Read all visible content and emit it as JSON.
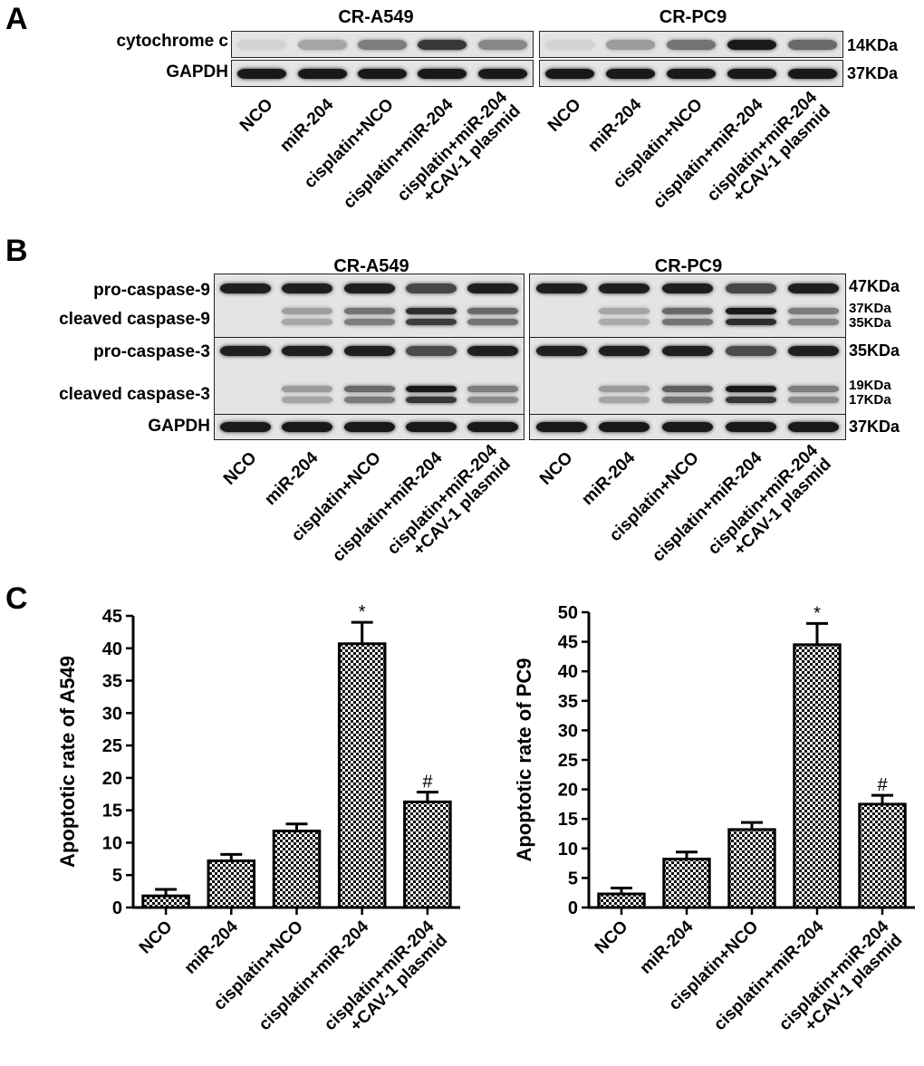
{
  "panels": {
    "A": {
      "letter": "A",
      "cell_lines": [
        "CR-A549",
        "CR-PC9"
      ],
      "rows": [
        {
          "label": "cytochrome c",
          "kda": "14KDa",
          "intensity_a549": [
            0.02,
            0.25,
            0.45,
            0.8,
            0.4
          ],
          "intensity_pc9": [
            0.02,
            0.3,
            0.5,
            0.95,
            0.55
          ]
        },
        {
          "label": "GAPDH",
          "kda": "37KDa",
          "intensity_a549": [
            0.95,
            0.95,
            0.95,
            0.95,
            0.95
          ],
          "intensity_pc9": [
            0.95,
            0.95,
            0.95,
            0.95,
            0.95
          ]
        }
      ],
      "lanes": [
        [
          "NCO"
        ],
        [
          "miR-204"
        ],
        [
          "cisplatin+NCO"
        ],
        [
          "cisplatin+miR-204"
        ],
        [
          "cisplatin+miR-204",
          "+CAV-1 plasmid"
        ]
      ]
    },
    "B": {
      "letter": "B",
      "cell_lines": [
        "CR-A549",
        "CR-PC9"
      ],
      "rows": [
        {
          "label": "pro-caspase-9",
          "kda": [
            "47KDa"
          ]
        },
        {
          "label": "cleaved caspase-9",
          "kda": [
            "37KDa",
            "35KDa"
          ]
        },
        {
          "label": "pro-caspase-3",
          "kda": [
            "35KDa"
          ]
        },
        {
          "label": "cleaved caspase-3",
          "kda": [
            "19KDa",
            "17KDa"
          ]
        },
        {
          "label": "GAPDH",
          "kda": [
            "37KDa"
          ]
        }
      ],
      "lanes": [
        [
          "NCO"
        ],
        [
          "miR-204"
        ],
        [
          "cisplatin+NCO"
        ],
        [
          "cisplatin+miR-204"
        ],
        [
          "cisplatin+miR-204",
          "+CAV-1 plasmid"
        ]
      ]
    },
    "C": {
      "letter": "C"
    }
  },
  "chart_data": [
    {
      "type": "bar",
      "ylabel": "Apoptotic rate of A549",
      "categories": [
        [
          "NCO"
        ],
        [
          "miR-204"
        ],
        [
          "cisplatin+NCO"
        ],
        [
          "cisplatin+miR-204"
        ],
        [
          "cisplatin+miR-204",
          "+CAV-1 plasmid"
        ]
      ],
      "values": [
        1.8,
        7.2,
        11.8,
        40.7,
        16.3
      ],
      "errors": [
        1.0,
        1.0,
        1.1,
        3.3,
        1.5
      ],
      "annotations": [
        "",
        "",
        "",
        "*",
        "#"
      ],
      "ylim": [
        0,
        45
      ],
      "yticks": [
        0,
        5,
        10,
        15,
        20,
        25,
        30,
        35,
        40,
        45
      ]
    },
    {
      "type": "bar",
      "ylabel": "Apoptotic rate of PC9",
      "categories": [
        [
          "NCO"
        ],
        [
          "miR-204"
        ],
        [
          "cisplatin+NCO"
        ],
        [
          "cisplatin+miR-204"
        ],
        [
          "cisplatin+miR-204",
          "+CAV-1 plasmid"
        ]
      ],
      "values": [
        2.3,
        8.2,
        13.2,
        44.5,
        17.5
      ],
      "errors": [
        1.0,
        1.2,
        1.2,
        3.6,
        1.5
      ],
      "annotations": [
        "",
        "",
        "",
        "*",
        "#"
      ],
      "ylim": [
        0,
        50
      ],
      "yticks": [
        0,
        5,
        10,
        15,
        20,
        25,
        30,
        35,
        40,
        45,
        50
      ]
    }
  ]
}
